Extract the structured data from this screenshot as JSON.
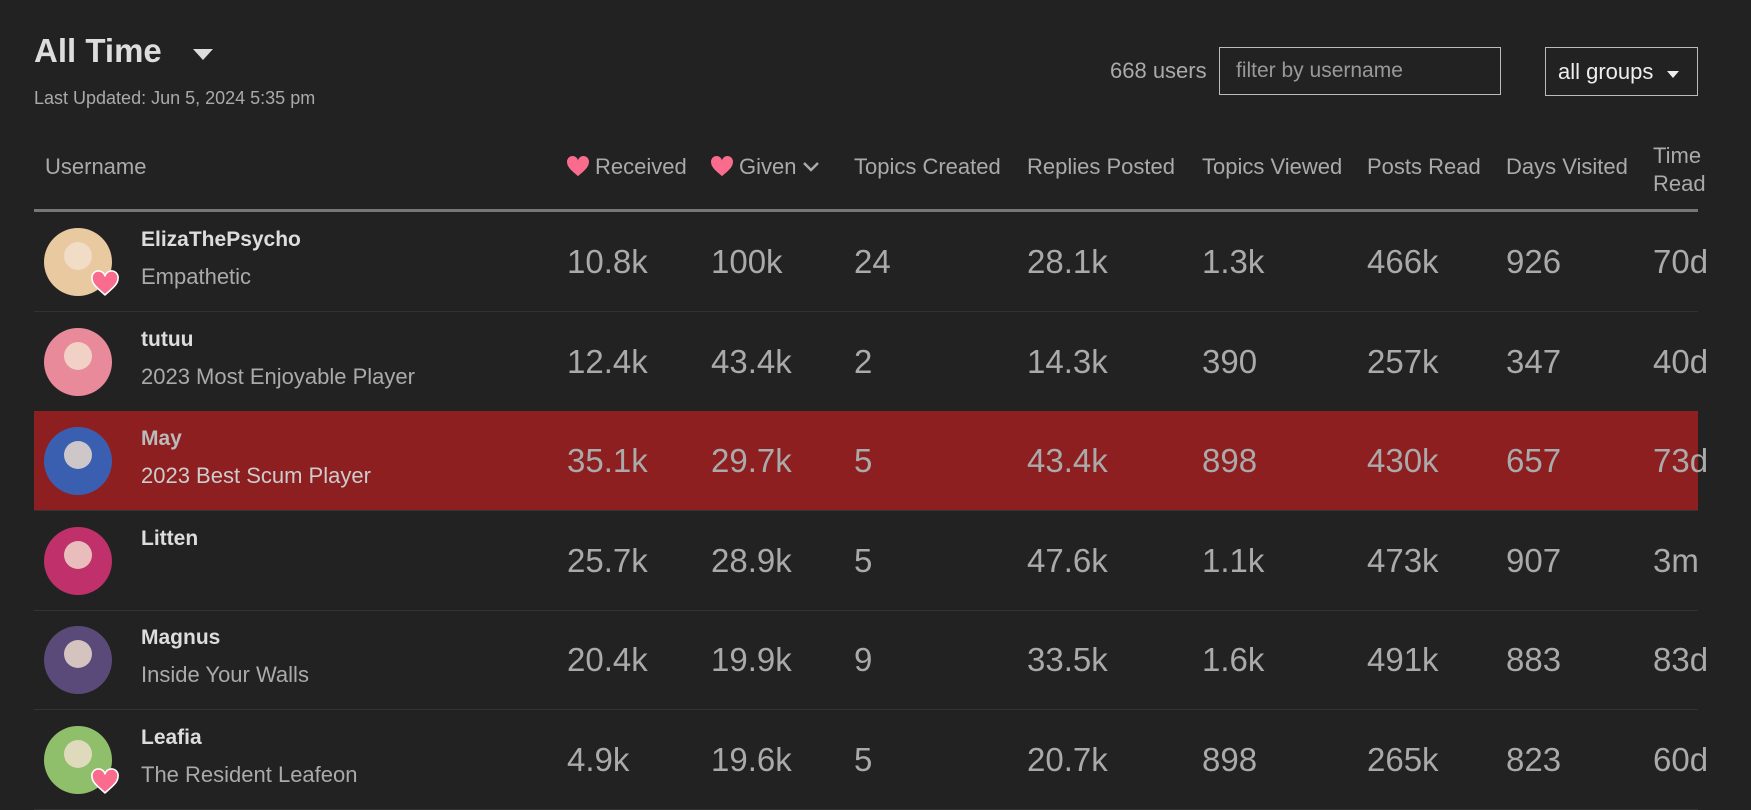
{
  "header": {
    "title": "All Time",
    "last_updated": "Last Updated: Jun 5, 2024 5:35 pm"
  },
  "controls": {
    "user_count": "668 users",
    "filter_placeholder": "filter by username",
    "group_select": "all groups"
  },
  "table": {
    "columns": [
      "Username",
      "Received",
      "Given",
      "Topics Created",
      "Replies Posted",
      "Topics Viewed",
      "Posts Read",
      "Days Visited",
      "Time Read"
    ],
    "rows": [
      {
        "username": "ElizaThePsycho",
        "title": "Empathetic",
        "values": [
          "10.8k",
          "100k",
          "24",
          "28.1k",
          "1.3k",
          "466k",
          "926",
          "70d"
        ]
      },
      {
        "username": "tutuu",
        "title": "2023 Most Enjoyable Player",
        "values": [
          "12.4k",
          "43.4k",
          "2",
          "14.3k",
          "390",
          "257k",
          "347",
          "40d"
        ]
      },
      {
        "username": "May",
        "title": "2023 Best Scum Player",
        "values": [
          "35.1k",
          "29.7k",
          "5",
          "43.4k",
          "898",
          "430k",
          "657",
          "73d"
        ],
        "highlighted": true
      },
      {
        "username": "Litten",
        "values": [
          "25.7k",
          "28.9k",
          "5",
          "47.6k",
          "1.1k",
          "473k",
          "907",
          "3m"
        ]
      },
      {
        "username": "Magnus",
        "title": "Inside Your Walls",
        "values": [
          "20.4k",
          "19.9k",
          "9",
          "33.5k",
          "1.6k",
          "491k",
          "883",
          "83d"
        ]
      },
      {
        "username": "Leafia",
        "title": "The Resident Leafeon",
        "values": [
          "4.9k",
          "19.6k",
          "5",
          "20.7k",
          "898",
          "265k",
          "823",
          "60d"
        ]
      }
    ]
  }
}
